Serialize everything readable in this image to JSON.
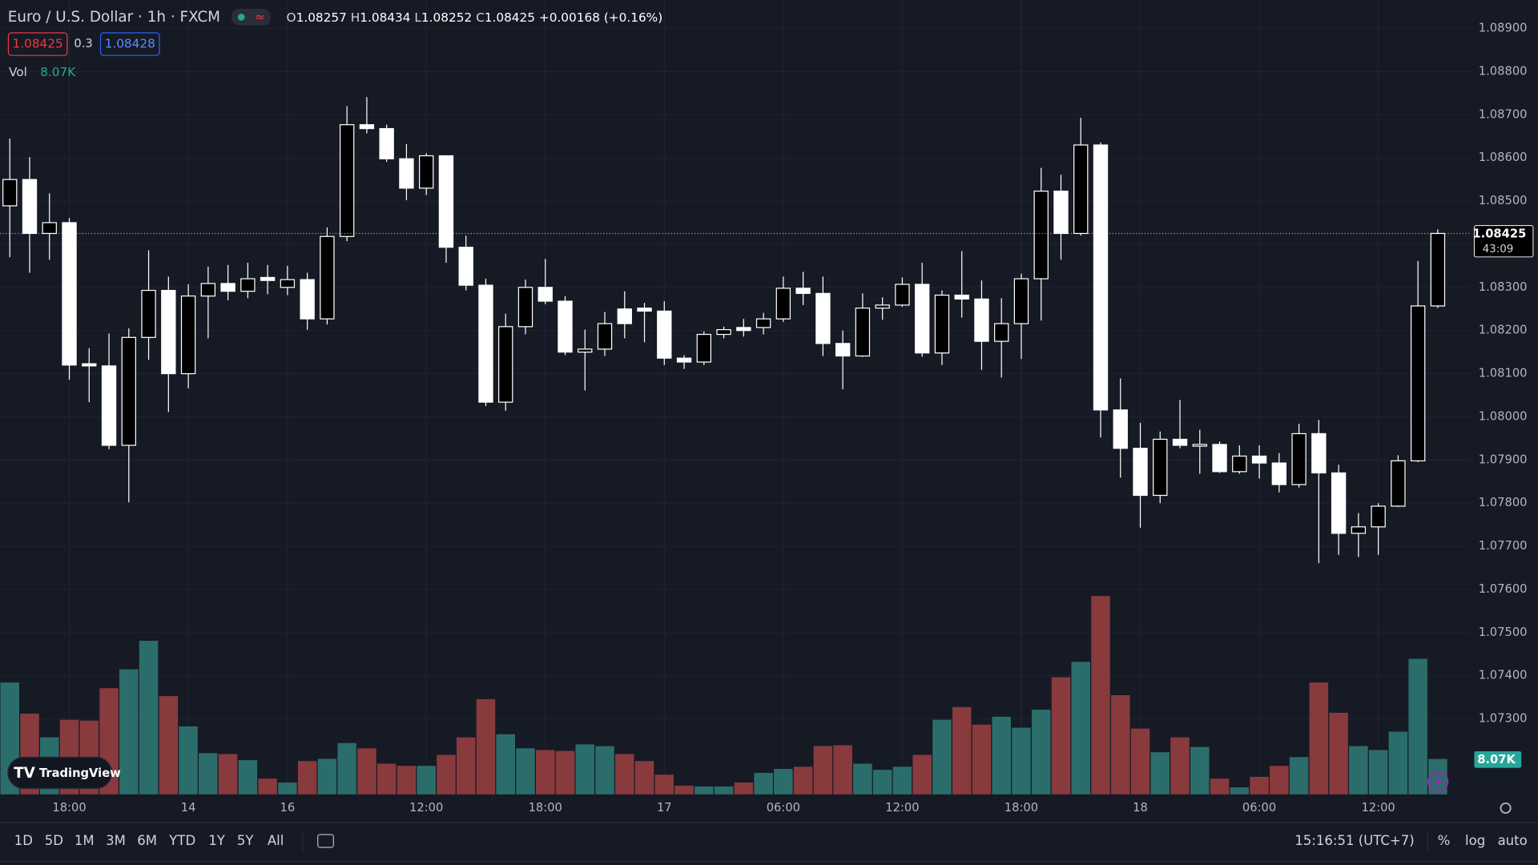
{
  "header": {
    "symbol": "Euro / U.S. Dollar · 1h · FXCM",
    "ohlc": [
      {
        "key": "O",
        "value": "1.08257"
      },
      {
        "key": "H",
        "value": "1.08434"
      },
      {
        "key": "L",
        "value": "1.08252"
      },
      {
        "key": "C",
        "value": "1.08425"
      }
    ],
    "change": "+0.00168 (+0.16%)",
    "sell": "1.08425",
    "spread": "0.3",
    "buy": "1.08428",
    "volume_name": "Vol"
  },
  "price_badge": {
    "price": "1.08425",
    "countdown": "43:09"
  },
  "logo": "TradingView",
  "toolbar": {
    "ranges": [
      "1D",
      "5D",
      "1M",
      "3M",
      "6M",
      "YTD",
      "1Y",
      "5Y",
      "All"
    ],
    "clock": "15:16:51 (UTC+7)",
    "options": [
      "%",
      "log",
      "auto"
    ]
  },
  "chart_data": {
    "type": "candlestick",
    "categories": [
      null,
      null,
      null,
      "18:00",
      null,
      null,
      null,
      null,
      null,
      "14",
      null,
      null,
      null,
      null,
      "16",
      null,
      null,
      null,
      null,
      null,
      null,
      "12:00",
      null,
      null,
      null,
      null,
      null,
      "18:00",
      null,
      null,
      null,
      null,
      null,
      "17",
      null,
      null,
      null,
      null,
      null,
      "06:00",
      null,
      null,
      null,
      null,
      null,
      "12:00",
      null,
      null,
      null,
      null,
      null,
      "18:00",
      null,
      null,
      null,
      null,
      null,
      "18",
      null,
      null,
      null,
      null,
      null,
      "06:00",
      null,
      null,
      null,
      null,
      null,
      "12:00",
      null,
      null,
      null
    ],
    "open": [
      1.08489,
      1.0855,
      1.08425,
      1.0845,
      1.08123,
      1.08118,
      1.07934,
      1.08184,
      1.08293,
      1.081,
      1.0828,
      1.08309,
      1.08291,
      1.08323,
      1.083,
      1.08318,
      1.08227,
      1.08418,
      1.08677,
      1.08668,
      1.08598,
      1.0853,
      1.08605,
      1.08393,
      1.08305,
      1.08034,
      1.08209,
      1.083,
      1.08268,
      1.0815,
      1.08157,
      1.0825,
      1.08252,
      1.08245,
      1.08136,
      1.08127,
      1.08191,
      1.08207,
      1.08207,
      1.08227,
      1.08298,
      1.08286,
      1.0817,
      1.08141,
      1.08252,
      1.08259,
      1.08307,
      1.08148,
      1.08282,
      1.08273,
      1.08175,
      1.08216,
      1.0832,
      1.08523,
      1.08425,
      1.0863,
      1.08016,
      1.07927,
      1.07818,
      1.07948,
      1.07932,
      1.07936,
      1.07873,
      1.07909,
      1.07893,
      1.07843,
      1.07961,
      1.0787,
      1.0773,
      1.07745,
      1.07793,
      1.07898,
      1.08257
    ],
    "high": [
      1.08645,
      1.08602,
      1.08518,
      1.08461,
      1.08159,
      1.08193,
      1.08205,
      1.08386,
      1.08325,
      1.08307,
      1.08348,
      1.08352,
      1.08357,
      1.08352,
      1.0835,
      1.08334,
      1.08439,
      1.0872,
      1.08741,
      1.08677,
      1.08632,
      1.08611,
      1.08605,
      1.0842,
      1.0832,
      1.08239,
      1.08318,
      1.08366,
      1.0828,
      1.08202,
      1.08243,
      1.08291,
      1.08264,
      1.08268,
      1.08143,
      1.08198,
      1.08209,
      1.08227,
      1.08241,
      1.08325,
      1.08336,
      1.08325,
      1.082,
      1.08286,
      1.08277,
      1.08323,
      1.08357,
      1.08293,
      1.08384,
      1.08316,
      1.08275,
      1.08332,
      1.08577,
      1.08561,
      1.08693,
      1.08636,
      1.08089,
      1.07986,
      1.07966,
      1.08039,
      1.0797,
      1.07943,
      1.07934,
      1.07934,
      1.07916,
      1.07984,
      1.07993,
      1.07889,
      1.07777,
      1.078,
      1.07911,
      1.08361,
      1.08434
    ],
    "low": [
      1.0837,
      1.08334,
      1.08364,
      1.08086,
      1.08034,
      1.07925,
      1.07802,
      1.08132,
      1.08011,
      1.08066,
      1.08182,
      1.0827,
      1.08275,
      1.08284,
      1.08282,
      1.08202,
      1.08214,
      1.08407,
      1.08657,
      1.08591,
      1.08502,
      1.08514,
      1.08357,
      1.08293,
      1.08025,
      1.08014,
      1.08191,
      1.08261,
      1.08143,
      1.08061,
      1.08141,
      1.08182,
      1.08173,
      1.0812,
      1.08111,
      1.0812,
      1.08182,
      1.08186,
      1.08191,
      1.0822,
      1.08259,
      1.08141,
      1.08064,
      1.08139,
      1.08225,
      1.08255,
      1.08139,
      1.0812,
      1.0823,
      1.08109,
      1.08091,
      1.08134,
      1.08223,
      1.08364,
      1.0842,
      1.07952,
      1.07859,
      1.07743,
      1.078,
      1.07927,
      1.07868,
      1.0787,
      1.07868,
      1.07857,
      1.07825,
      1.07836,
      1.07661,
      1.0768,
      1.07675,
      1.0768,
      1.07791,
      1.07895,
      1.08252
    ],
    "close": [
      1.0855,
      1.08425,
      1.0845,
      1.0812,
      1.08118,
      1.07934,
      1.08184,
      1.08293,
      1.081,
      1.0828,
      1.08309,
      1.08291,
      1.0832,
      1.08316,
      1.08318,
      1.08227,
      1.08418,
      1.08677,
      1.08668,
      1.08598,
      1.0853,
      1.08605,
      1.08393,
      1.08305,
      1.08034,
      1.08209,
      1.083,
      1.08268,
      1.0815,
      1.08157,
      1.08216,
      1.08216,
      1.08245,
      1.08136,
      1.08127,
      1.08191,
      1.08202,
      1.082,
      1.08227,
      1.08298,
      1.08286,
      1.0817,
      1.08141,
      1.08252,
      1.08259,
      1.08307,
      1.08148,
      1.08282,
      1.08273,
      1.08175,
      1.08216,
      1.0832,
      1.08523,
      1.08425,
      1.0863,
      1.08016,
      1.07927,
      1.07818,
      1.07948,
      1.07934,
      1.07936,
      1.07873,
      1.07909,
      1.07893,
      1.07843,
      1.07961,
      1.0787,
      1.0773,
      1.07745,
      1.07793,
      1.07898,
      1.08257,
      1.08425
    ],
    "volume": [
      25500,
      18400,
      13000,
      17000,
      16800,
      24200,
      28500,
      35000,
      22400,
      15500,
      9400,
      9200,
      7800,
      3600,
      2700,
      7600,
      8100,
      11700,
      10500,
      7000,
      6500,
      6500,
      9000,
      13000,
      21700,
      13700,
      10500,
      10100,
      9900,
      11400,
      11000,
      9200,
      7600,
      4500,
      2000,
      1800,
      1800,
      2700,
      4900,
      5800,
      6300,
      11000,
      11200,
      7000,
      5600,
      6300,
      9000,
      17000,
      19900,
      15900,
      17700,
      15200,
      19300,
      26700,
      30200,
      45200,
      22600,
      15000,
      9600,
      13000,
      10800,
      3600,
      1600,
      4000,
      6500,
      8500,
      25500,
      18600,
      11000,
      10100,
      14300,
      30900,
      8070
    ],
    "value_labels": [
      null,
      null,
      null,
      null,
      null,
      null,
      null,
      null,
      null,
      null,
      null,
      null,
      null,
      null,
      null,
      null,
      null,
      null,
      null,
      null,
      null,
      null,
      null,
      null,
      null,
      null,
      null,
      null,
      null,
      null,
      null,
      null,
      null,
      null,
      null,
      null,
      null,
      null,
      null,
      null,
      null,
      null,
      null,
      null,
      null,
      null,
      null,
      null,
      null,
      null,
      null,
      null,
      null,
      null,
      null,
      null,
      null,
      null,
      null,
      null,
      null,
      null,
      null,
      null,
      null,
      null,
      null,
      null,
      null,
      null,
      null,
      null,
      "8.07K"
    ],
    "ylim": [
      1.07125,
      1.08966
    ],
    "yticks": [
      {
        "value": 1.089,
        "label": "1.08900"
      },
      {
        "value": 1.088,
        "label": "1.08800"
      },
      {
        "value": 1.087,
        "label": "1.08700"
      },
      {
        "value": 1.086,
        "label": "1.08600"
      },
      {
        "value": 1.085,
        "label": "1.08500"
      },
      {
        "value": 1.084,
        "label": "1.08400"
      },
      {
        "value": 1.083,
        "label": "1.08300"
      },
      {
        "value": 1.082,
        "label": "1.08200"
      },
      {
        "value": 1.081,
        "label": "1.08100"
      },
      {
        "value": 1.08,
        "label": "1.08000"
      },
      {
        "value": 1.079,
        "label": "1.07900"
      },
      {
        "value": 1.078,
        "label": "1.07800"
      },
      {
        "value": 1.077,
        "label": "1.07700"
      },
      {
        "value": 1.076,
        "label": "1.07600"
      },
      {
        "value": 1.075,
        "label": "1.07500"
      },
      {
        "value": 1.074,
        "label": "1.07400"
      },
      {
        "value": 1.073,
        "label": "1.07300"
      }
    ],
    "volume_ylim": [
      0,
      181000
    ],
    "grid": true,
    "up_color": "#000000",
    "down_color": "#ffffff",
    "border_color": "#ffffff",
    "up_volume_color": "#2b6d6a",
    "down_volume_color": "#893a3d"
  }
}
